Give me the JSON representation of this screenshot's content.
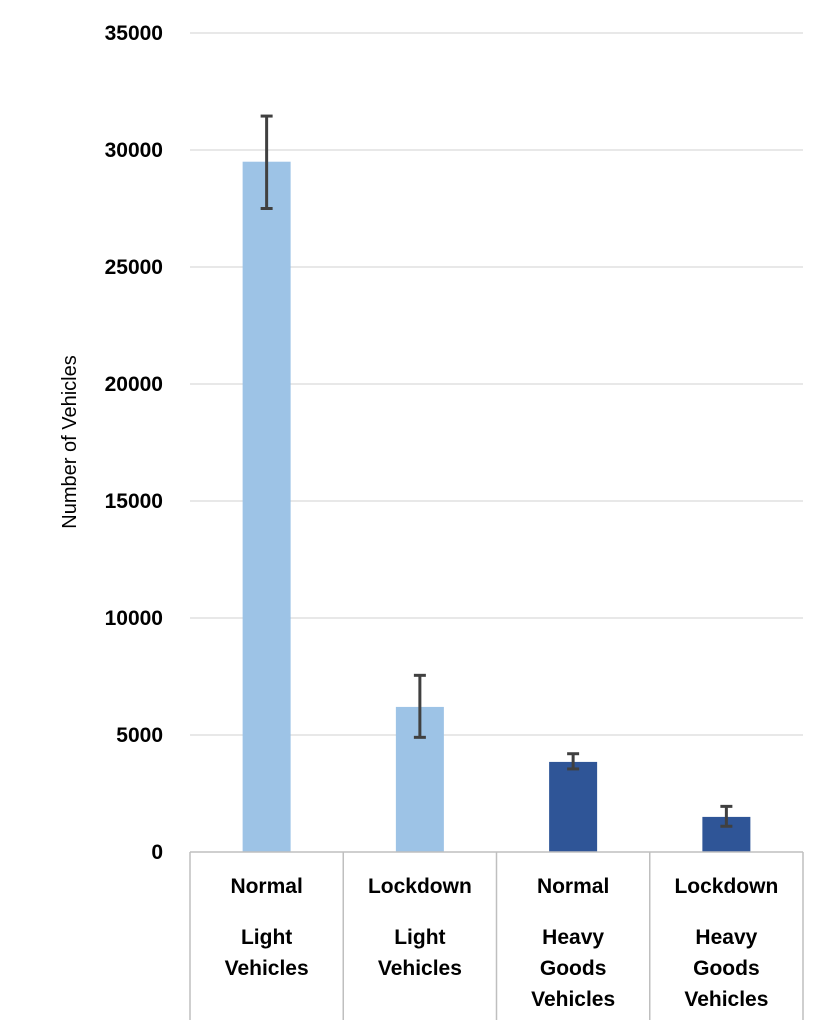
{
  "chart_data": {
    "type": "bar",
    "title": "",
    "xlabel": "",
    "ylabel": "Number of Vehicles",
    "ylim": [
      0,
      35000
    ],
    "yticks": [
      0,
      5000,
      10000,
      15000,
      20000,
      25000,
      30000,
      35000
    ],
    "grid": true,
    "legend": "none",
    "categories": [
      {
        "label": [
          "Normal",
          "Light",
          "Vehicles"
        ],
        "group": "light"
      },
      {
        "label": [
          "Lockdown",
          "Light",
          "Vehicles"
        ],
        "group": "light"
      },
      {
        "label": [
          "Normal",
          "Heavy",
          "Goods",
          "Vehicles"
        ],
        "group": "heavy"
      },
      {
        "label": [
          "Lockdown",
          "Heavy",
          "Goods",
          "Vehicles"
        ],
        "group": "heavy"
      }
    ],
    "values": [
      29500,
      6200,
      3850,
      1500
    ],
    "error_low": [
      27500,
      4900,
      3550,
      1100
    ],
    "error_high": [
      31450,
      7550,
      4200,
      1950
    ],
    "colors": {
      "light": "#9dc3e6",
      "heavy": "#2f5597",
      "grid": "#d9d9d9",
      "axis": "#bfbfbf",
      "errorbar": "#404040"
    }
  }
}
